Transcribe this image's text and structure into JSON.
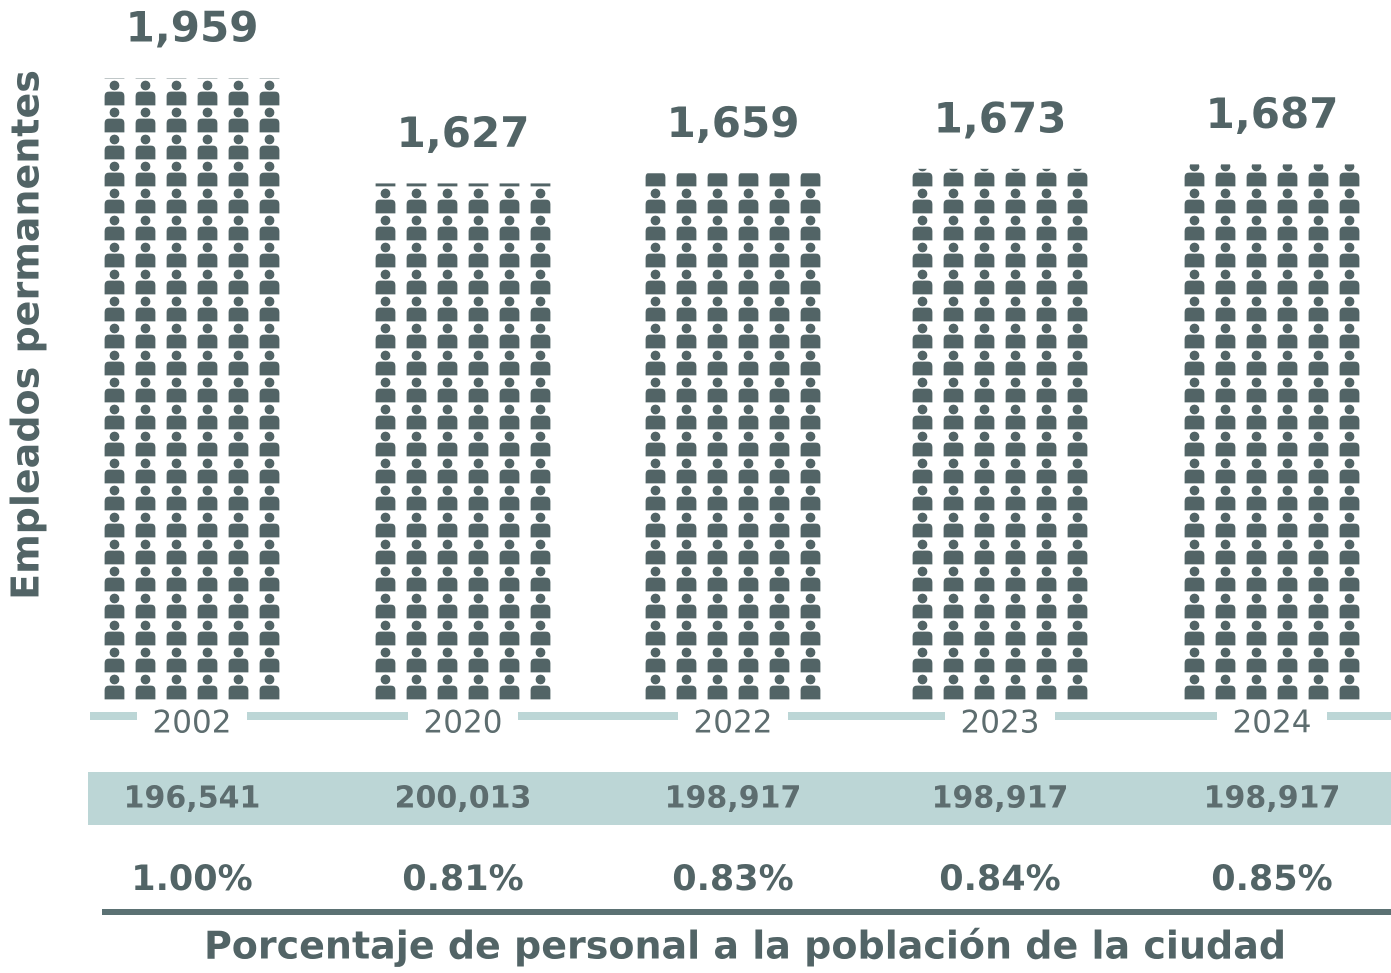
{
  "chart_data": {
    "type": "pictograph",
    "y_axis_label": "Empleados permanentes",
    "x_axis_label": "Porcentaje de personal a la población de la ciudad",
    "categories": [
      "2002",
      "2020",
      "2022",
      "2023",
      "2024"
    ],
    "values": [
      1959,
      1627,
      1659,
      1673,
      1687
    ],
    "value_labels": [
      "1,959",
      "1,627",
      "1,659",
      "1,673",
      "1,687"
    ],
    "population": [
      196541,
      200013,
      198917,
      198917,
      198917
    ],
    "population_labels": [
      "196,541",
      "200,013",
      "198,917",
      "198,917",
      "198,917"
    ],
    "percentages": [
      1.0,
      0.81,
      0.83,
      0.84,
      0.85
    ],
    "percentage_labels": [
      "1.00%",
      "0.81%",
      "0.83%",
      "0.84%",
      "0.85%"
    ],
    "color": "#526466",
    "ylim": [
      0,
      2000
    ]
  }
}
